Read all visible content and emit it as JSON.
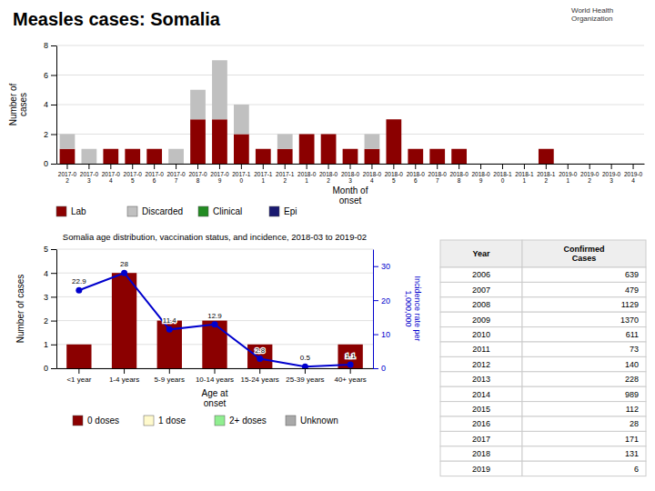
{
  "chart_data": [
    {
      "type": "bar",
      "title": "Measles cases: Somalia",
      "annotations": [
        {
          "text": "World Health\nOrganization"
        }
      ],
      "stacked": true,
      "categories": [
        "2017-0\n2",
        "2017-0\n3",
        "2017-0\n4",
        "2017-0\n5",
        "2017-0\n6",
        "2017-0\n7",
        "2017-0\n8",
        "2017-0\n9",
        "2017-1\n0",
        "2017-1\n1",
        "2017-1\n2",
        "2018-0\n1",
        "2018-0\n2",
        "2018-0\n3",
        "2018-0\n4",
        "2018-0\n5",
        "2018-0\n6",
        "2018-0\n7",
        "2018-0\n8",
        "2018-0\n9",
        "2018-1\n0",
        "2018-1\n1",
        "2018-1\n2",
        "2019-0\n1",
        "2019-0\n2",
        "2019-0\n3",
        "2019-0\n4"
      ],
      "series": [
        {
          "name": "Lab",
          "color": "#8B0000",
          "values": [
            1,
            0,
            1,
            1,
            1,
            0,
            3,
            3,
            2,
            1,
            1,
            2,
            2,
            1,
            1,
            3,
            1,
            1,
            1,
            0,
            0,
            0,
            1,
            0,
            0,
            0,
            0
          ]
        },
        {
          "name": "Discarded",
          "color": "#C0C0C0",
          "values": [
            1,
            1,
            0,
            0,
            0,
            1,
            2,
            4,
            2,
            0,
            1,
            0,
            0,
            0,
            1,
            0,
            0,
            0,
            0,
            0,
            0,
            0,
            0,
            0,
            0,
            0,
            0
          ]
        },
        {
          "name": "Clinical",
          "color": "#228B22",
          "values": [
            0,
            0,
            0,
            0,
            0,
            0,
            0,
            0,
            0,
            0,
            0,
            0,
            0,
            0,
            0,
            0,
            0,
            0,
            0,
            0,
            0,
            0,
            0,
            0,
            0,
            0,
            0
          ]
        },
        {
          "name": "Epi",
          "color": "#191970",
          "values": [
            0,
            0,
            0,
            0,
            0,
            0,
            0,
            0,
            0,
            0,
            0,
            0,
            0,
            0,
            0,
            0,
            0,
            0,
            0,
            0,
            0,
            0,
            0,
            0,
            0,
            0,
            0
          ]
        }
      ],
      "xlabel": "Month of\nonset",
      "ylabel": "Number of\ncases",
      "ylim": [
        0,
        8
      ],
      "yticks": [
        0,
        2,
        4,
        6,
        8
      ],
      "grid": true,
      "legend": "bottom"
    },
    {
      "type": "bar",
      "title": "Somalia age distribution, vaccination status, and incidence, 2018-03 to 2019-02",
      "stacked": true,
      "categories": [
        "<1 year",
        "1-4 years",
        "5-9 years",
        "10-14 years",
        "15-24 years",
        "25-39 years",
        "40+ years"
      ],
      "series": [
        {
          "name": "0 doses",
          "color": "#8B0000",
          "values": [
            1,
            4,
            2,
            2,
            1,
            0,
            1
          ]
        },
        {
          "name": "1 dose",
          "color": "#FFFACD",
          "values": [
            0,
            0,
            0,
            0,
            0,
            0,
            0
          ]
        },
        {
          "name": "2+ doses",
          "color": "#90EE90",
          "values": [
            0,
            0,
            0,
            0,
            0,
            0,
            0
          ]
        },
        {
          "name": "Unknown",
          "color": "#A9A9A9",
          "values": [
            0,
            0,
            0,
            0,
            0,
            0,
            0
          ]
        },
        {
          "type": "line",
          "axis": "y2",
          "color": "#0000CD",
          "marker": "circle",
          "data_labels": true,
          "values": [
            22.9,
            28,
            11.4,
            12.9,
            2.8,
            0.5,
            1.1
          ]
        }
      ],
      "xlabel": "Age at\nonset",
      "ylabel": "Number of cases",
      "y2label": "Incidence rate per\n1,000,000",
      "ylim": [
        0,
        5
      ],
      "yticks": [
        0,
        1,
        2,
        3,
        4,
        5
      ],
      "y2lim": [
        0,
        35
      ],
      "y2ticks": [
        0,
        10,
        20,
        30
      ],
      "grid": true,
      "legend": "bottom"
    },
    {
      "type": "table",
      "columns": [
        "Year",
        "Confirmed\nCases"
      ],
      "categories": [
        "2006",
        "2007",
        "2008",
        "2009",
        "2010",
        "2011",
        "2012",
        "2013",
        "2014",
        "2015",
        "2016",
        "2017",
        "2018",
        "2019"
      ],
      "values": [
        639,
        479,
        1129,
        1370,
        611,
        73,
        140,
        228,
        989,
        112,
        28,
        171,
        131,
        6
      ]
    }
  ]
}
